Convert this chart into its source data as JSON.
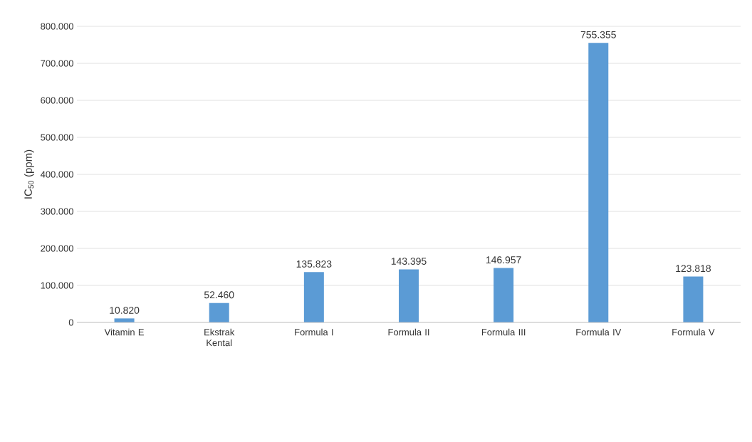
{
  "chart_data": {
    "type": "bar",
    "ylabel": "IC$_{50}$ (ppm)",
    "categories": [
      "Vitamin E",
      "Ekstrak Kental",
      "Formula I",
      "Formula II",
      "Formula III",
      "Formula IV",
      "Formula V"
    ],
    "values": [
      10820,
      52460,
      135823,
      143395,
      146957,
      755355,
      123818
    ],
    "value_labels": [
      "10.820",
      "52.460",
      "135.823",
      "143.395",
      "146.957",
      "755.355",
      "123.818"
    ],
    "color": "#5b9bd5",
    "ylim": [
      0,
      800000
    ],
    "yticks": [
      0,
      {
        "value": 100000,
        "label": "100.000"
      },
      {
        "value": 200000,
        "label": "200.000"
      },
      {
        "value": 300000,
        "label": "300.000"
      },
      {
        "value": 400000,
        "label": "400.000"
      },
      {
        "value": 500000,
        "label": "500.000"
      },
      {
        "value": 600000,
        "label": "600.000"
      },
      {
        "value": 700000,
        "label": "700.000"
      },
      {
        "value": 800000,
        "label": "800.000"
      }
    ],
    "grid": "y"
  }
}
